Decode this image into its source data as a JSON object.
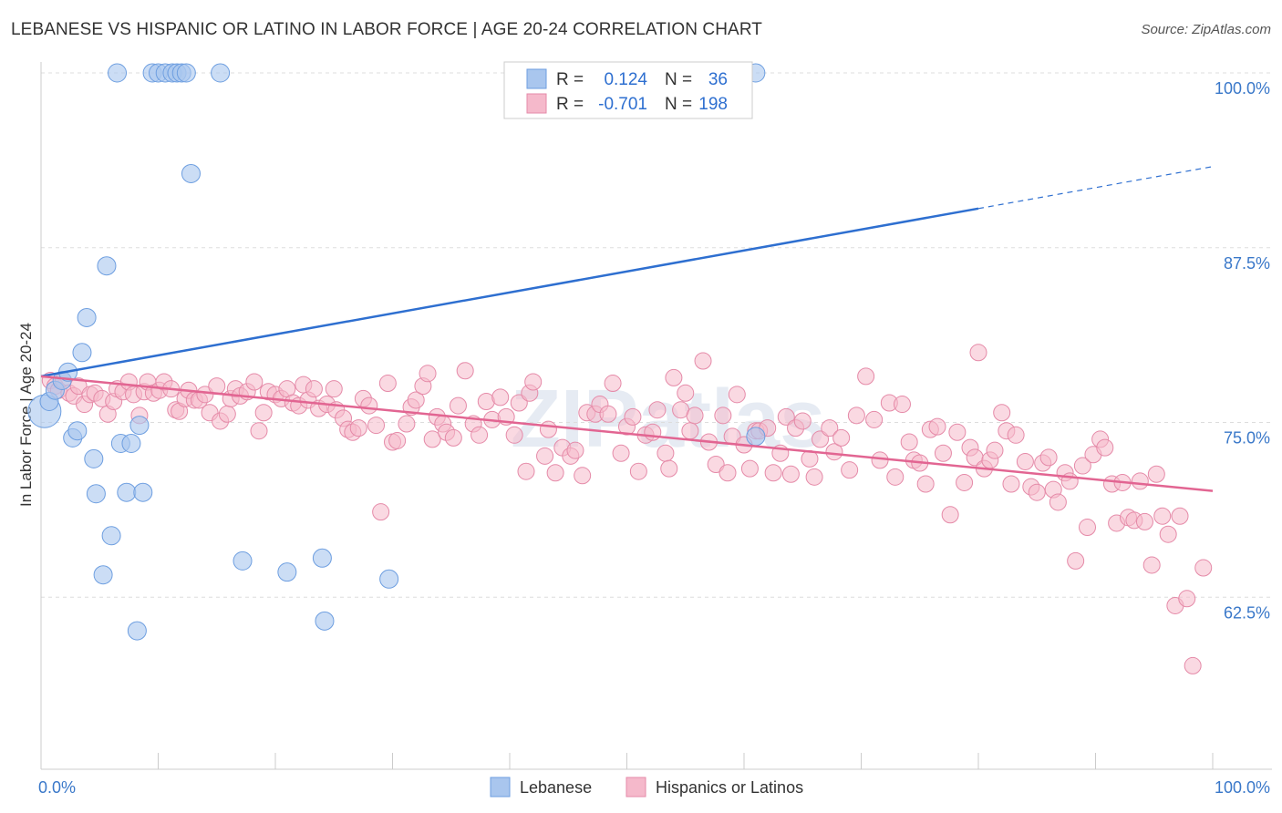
{
  "title": "LEBANESE VS HISPANIC OR LATINO IN LABOR FORCE | AGE 20-24 CORRELATION CHART",
  "source": "Source: ZipAtlas.com",
  "watermark": "ZIPatlas",
  "colors": {
    "blue_fill": "#a9c6ee",
    "blue_stroke": "#6d9ee0",
    "blue_line": "#2e6fd0",
    "pink_fill": "#f5b9cb",
    "pink_stroke": "#e58aa8",
    "pink_line": "#e26592",
    "tick_color": "#3a78c9",
    "grid": "#dddddd"
  },
  "legend": {
    "r_label": "R =",
    "n_label": "N =",
    "rows": [
      {
        "r": "0.124",
        "n": "36",
        "series": "Lebanese"
      },
      {
        "r": "-0.701",
        "n": "198",
        "series": "Hispanics or Latinos"
      }
    ]
  },
  "bottom_legend": [
    "Lebanese",
    "Hispanics or Latinos"
  ],
  "chart_data": {
    "type": "scatter",
    "xlabel": "",
    "ylabel": "In Labor Force | Age 20-24",
    "xlim": [
      0,
      100
    ],
    "ylim": [
      50,
      100
    ],
    "x_ticks": [
      "0.0%",
      "100.0%"
    ],
    "y_ticks": [
      {
        "value": 100,
        "label": "100.0%"
      },
      {
        "value": 87.5,
        "label": "87.5%"
      },
      {
        "value": 75,
        "label": "75.0%"
      },
      {
        "value": 62.5,
        "label": "62.5%"
      }
    ],
    "grid": true,
    "series": [
      {
        "name": "Lebanese",
        "trend": {
          "x": [
            0,
            80
          ],
          "y": [
            78.3,
            90.3
          ],
          "dashed_to": [
            100,
            93.3
          ]
        },
        "points": [
          [
            0.3,
            75.8,
            18
          ],
          [
            0.7,
            76.5,
            10
          ],
          [
            1.2,
            77.3,
            10
          ],
          [
            1.8,
            78.0,
            10
          ],
          [
            2.3,
            78.6,
            10
          ],
          [
            2.7,
            73.9,
            10
          ],
          [
            3.1,
            74.4,
            10
          ],
          [
            3.5,
            80.0,
            10
          ],
          [
            3.9,
            82.5,
            10
          ],
          [
            4.5,
            72.4,
            10
          ],
          [
            4.7,
            69.9,
            10
          ],
          [
            5.3,
            64.1,
            10
          ],
          [
            5.6,
            86.2,
            10
          ],
          [
            6.0,
            66.9,
            10
          ],
          [
            6.5,
            100.0,
            10
          ],
          [
            6.8,
            73.5,
            10
          ],
          [
            7.3,
            70.0,
            10
          ],
          [
            7.7,
            73.5,
            10
          ],
          [
            8.2,
            60.1,
            10
          ],
          [
            8.4,
            74.8,
            10
          ],
          [
            8.7,
            70.0,
            10
          ],
          [
            9.5,
            100.0,
            10
          ],
          [
            10.0,
            100.0,
            10
          ],
          [
            10.6,
            100.0,
            10
          ],
          [
            11.2,
            100.0,
            10
          ],
          [
            11.6,
            100.0,
            10
          ],
          [
            12.0,
            100.0,
            10
          ],
          [
            12.4,
            100.0,
            10
          ],
          [
            12.8,
            92.8,
            10
          ],
          [
            15.3,
            100.0,
            10
          ],
          [
            17.2,
            65.1,
            10
          ],
          [
            21.0,
            64.3,
            10
          ],
          [
            24.0,
            65.3,
            10
          ],
          [
            24.2,
            60.8,
            10
          ],
          [
            29.7,
            63.8,
            10
          ],
          [
            61.0,
            74.0,
            10
          ],
          [
            61.0,
            100.0,
            10
          ]
        ]
      },
      {
        "name": "Hispanics or Latinos",
        "trend": {
          "x": [
            0,
            100
          ],
          "y": [
            78.3,
            70.1
          ]
        },
        "points": [
          [
            0.8,
            78.0
          ],
          [
            1.2,
            77.6
          ],
          [
            1.5,
            77.3
          ],
          [
            1.9,
            78.0
          ],
          [
            2.4,
            77.1
          ],
          [
            2.8,
            76.9
          ],
          [
            3.2,
            77.6
          ],
          [
            3.7,
            76.3
          ],
          [
            4.2,
            77.0
          ],
          [
            4.6,
            77.1
          ],
          [
            5.2,
            76.7
          ],
          [
            5.7,
            75.6
          ],
          [
            6.2,
            76.5
          ],
          [
            6.5,
            77.4
          ],
          [
            7.0,
            77.2
          ],
          [
            7.5,
            77.9
          ],
          [
            7.9,
            77.0
          ],
          [
            8.4,
            75.5
          ],
          [
            8.8,
            77.2
          ],
          [
            9.1,
            77.9
          ],
          [
            9.6,
            77.1
          ],
          [
            10.1,
            77.3
          ],
          [
            10.5,
            77.9
          ],
          [
            11.1,
            77.4
          ],
          [
            11.5,
            75.9
          ],
          [
            11.8,
            75.8
          ],
          [
            12.3,
            76.7
          ],
          [
            12.6,
            77.3
          ],
          [
            13.1,
            76.6
          ],
          [
            13.5,
            76.6
          ],
          [
            14.0,
            77.0
          ],
          [
            14.4,
            75.7
          ],
          [
            15.0,
            77.6
          ],
          [
            15.3,
            75.1
          ],
          [
            15.9,
            75.6
          ],
          [
            16.2,
            76.7
          ],
          [
            16.6,
            77.4
          ],
          [
            17.0,
            76.9
          ],
          [
            17.6,
            77.2
          ],
          [
            18.2,
            77.9
          ],
          [
            18.6,
            74.4
          ],
          [
            19.0,
            75.7
          ],
          [
            19.4,
            77.2
          ],
          [
            20.0,
            77.0
          ],
          [
            20.5,
            76.7
          ],
          [
            21.0,
            77.4
          ],
          [
            21.5,
            76.4
          ],
          [
            22.0,
            76.2
          ],
          [
            22.4,
            77.7
          ],
          [
            22.8,
            76.6
          ],
          [
            23.3,
            77.4
          ],
          [
            23.7,
            76.0
          ],
          [
            24.4,
            76.3
          ],
          [
            25.0,
            77.4
          ],
          [
            25.2,
            75.9
          ],
          [
            25.8,
            75.3
          ],
          [
            26.2,
            74.5
          ],
          [
            26.6,
            74.3
          ],
          [
            27.1,
            74.6
          ],
          [
            27.5,
            76.7
          ],
          [
            28.0,
            76.2
          ],
          [
            28.6,
            74.8
          ],
          [
            29.0,
            68.6
          ],
          [
            29.6,
            77.8
          ],
          [
            30.0,
            73.6
          ],
          [
            30.4,
            73.7
          ],
          [
            31.2,
            74.9
          ],
          [
            31.6,
            76.1
          ],
          [
            32.0,
            76.6
          ],
          [
            32.6,
            77.6
          ],
          [
            33.0,
            78.5
          ],
          [
            33.4,
            73.8
          ],
          [
            33.8,
            75.4
          ],
          [
            34.3,
            74.9
          ],
          [
            34.6,
            74.3
          ],
          [
            35.2,
            73.9
          ],
          [
            35.6,
            76.2
          ],
          [
            36.2,
            78.7
          ],
          [
            36.9,
            74.9
          ],
          [
            37.4,
            74.1
          ],
          [
            38.0,
            76.5
          ],
          [
            38.5,
            75.2
          ],
          [
            39.2,
            76.8
          ],
          [
            39.7,
            75.4
          ],
          [
            40.4,
            74.1
          ],
          [
            40.8,
            76.4
          ],
          [
            41.4,
            71.5
          ],
          [
            41.7,
            77.1
          ],
          [
            42.0,
            77.9
          ],
          [
            43.0,
            72.6
          ],
          [
            43.3,
            74.5
          ],
          [
            43.9,
            71.4
          ],
          [
            44.5,
            73.2
          ],
          [
            45.2,
            72.6
          ],
          [
            45.6,
            73.0
          ],
          [
            46.2,
            71.2
          ],
          [
            46.6,
            75.7
          ],
          [
            47.3,
            75.6
          ],
          [
            47.7,
            76.3
          ],
          [
            48.4,
            75.6
          ],
          [
            48.8,
            77.8
          ],
          [
            49.5,
            72.8
          ],
          [
            50.0,
            74.7
          ],
          [
            50.5,
            75.4
          ],
          [
            51.0,
            71.5
          ],
          [
            51.6,
            74.1
          ],
          [
            52.2,
            74.3
          ],
          [
            52.6,
            75.9
          ],
          [
            53.3,
            72.8
          ],
          [
            53.6,
            71.7
          ],
          [
            54.0,
            78.2
          ],
          [
            54.6,
            75.9
          ],
          [
            55.0,
            77.1
          ],
          [
            55.4,
            74.4
          ],
          [
            55.8,
            75.5
          ],
          [
            56.5,
            79.4
          ],
          [
            57.0,
            73.6
          ],
          [
            57.6,
            72.0
          ],
          [
            58.2,
            75.5
          ],
          [
            58.6,
            71.4
          ],
          [
            59.0,
            74.0
          ],
          [
            59.4,
            77.0
          ],
          [
            60.0,
            73.4
          ],
          [
            60.5,
            71.7
          ],
          [
            61.0,
            74.4
          ],
          [
            61.3,
            74.4
          ],
          [
            62.0,
            74.6
          ],
          [
            62.5,
            71.4
          ],
          [
            63.1,
            72.8
          ],
          [
            63.6,
            75.4
          ],
          [
            64.0,
            71.3
          ],
          [
            64.4,
            74.6
          ],
          [
            65.0,
            75.1
          ],
          [
            65.6,
            72.4
          ],
          [
            66.0,
            71.1
          ],
          [
            66.5,
            73.8
          ],
          [
            67.3,
            74.6
          ],
          [
            67.7,
            72.9
          ],
          [
            68.3,
            73.9
          ],
          [
            69.0,
            71.6
          ],
          [
            69.6,
            75.5
          ],
          [
            70.4,
            78.3
          ],
          [
            71.1,
            75.2
          ],
          [
            71.6,
            72.3
          ],
          [
            72.4,
            76.4
          ],
          [
            72.9,
            71.1
          ],
          [
            73.5,
            76.3
          ],
          [
            74.1,
            73.6
          ],
          [
            74.5,
            72.3
          ],
          [
            75.0,
            72.1
          ],
          [
            75.5,
            70.6
          ],
          [
            75.9,
            74.5
          ],
          [
            76.5,
            74.7
          ],
          [
            77.0,
            72.8
          ],
          [
            77.6,
            68.4
          ],
          [
            78.2,
            74.3
          ],
          [
            78.8,
            70.7
          ],
          [
            79.3,
            73.2
          ],
          [
            79.7,
            72.5
          ],
          [
            80.0,
            80.0
          ],
          [
            80.5,
            71.7
          ],
          [
            81.0,
            72.3
          ],
          [
            81.4,
            73.0
          ],
          [
            82.0,
            75.7
          ],
          [
            82.4,
            74.4
          ],
          [
            82.8,
            70.6
          ],
          [
            83.2,
            74.1
          ],
          [
            84.0,
            72.2
          ],
          [
            84.5,
            70.4
          ],
          [
            85.0,
            70.0
          ],
          [
            85.5,
            72.1
          ],
          [
            86.0,
            72.5
          ],
          [
            86.4,
            70.2
          ],
          [
            86.8,
            69.3
          ],
          [
            87.4,
            71.4
          ],
          [
            87.8,
            70.8
          ],
          [
            88.3,
            65.1
          ],
          [
            88.9,
            71.9
          ],
          [
            89.3,
            67.5
          ],
          [
            89.8,
            72.7
          ],
          [
            90.4,
            73.8
          ],
          [
            90.8,
            73.2
          ],
          [
            91.4,
            70.6
          ],
          [
            91.8,
            67.8
          ],
          [
            92.3,
            70.7
          ],
          [
            92.8,
            68.2
          ],
          [
            93.3,
            68.0
          ],
          [
            93.8,
            70.8
          ],
          [
            94.2,
            67.9
          ],
          [
            94.8,
            64.8
          ],
          [
            95.2,
            71.3
          ],
          [
            95.7,
            68.3
          ],
          [
            96.2,
            67.0
          ],
          [
            96.8,
            61.9
          ],
          [
            97.2,
            68.3
          ],
          [
            97.8,
            62.4
          ],
          [
            98.3,
            57.6
          ],
          [
            99.2,
            64.6
          ]
        ]
      }
    ]
  }
}
